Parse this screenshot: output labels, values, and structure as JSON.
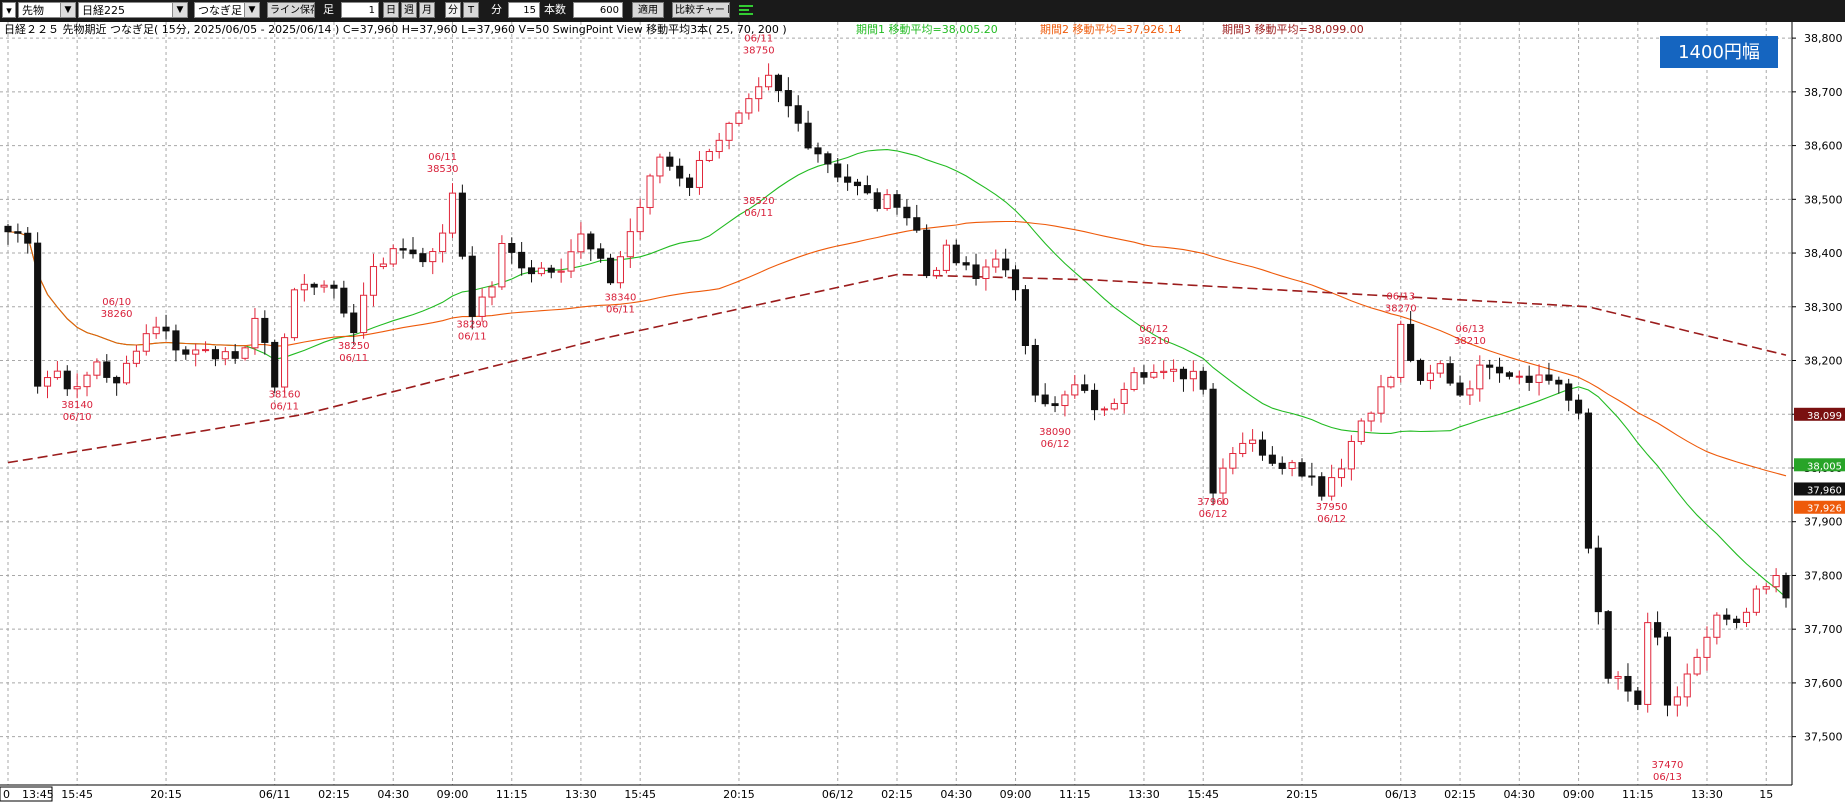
{
  "toolbar": {
    "market": "先物",
    "instrument": "日経225",
    "series_type": "つなぎ足",
    "save_line": "ライン保存",
    "ashi": "足",
    "ashi_num": "1",
    "day": "日",
    "week": "週",
    "month": "月",
    "minute": "分",
    "tick": "T",
    "interval": "15",
    "minute_lbl": "分",
    "bars_lbl": "本数",
    "bars": "600",
    "apply": "適用",
    "compare": "比較チャート"
  },
  "chart_data": {
    "type": "candlestick",
    "header_text": "日経２２５ 先物期近 つなぎ足( 15分, 2025/06/05 - 2025/06/14 )  C=37,960 H=37,960 L=37,960 V=50   SwingPoint View   移動平均3本( 25, 70, 200 )",
    "ma_legend": [
      {
        "text": "期間1 移動平均=38,005.20",
        "color": "#22bb22"
      },
      {
        "text": "期間2 移動平均=37,926.14",
        "color": "#ee5a0a"
      },
      {
        "text": "期間3 移動平均=38,099.00",
        "color": "#9b1c1c"
      }
    ],
    "badge": "1400円幅",
    "ylim": [
      37410,
      38830
    ],
    "y_ticks": [
      37500,
      37600,
      37700,
      37800,
      37900,
      38000,
      38100,
      38200,
      38300,
      38400,
      38500,
      38600,
      38700,
      38800
    ],
    "y_tick_labels": [
      "37,500",
      "37,600",
      "37,700",
      "37,800",
      "37,900",
      "38,000",
      "38,100",
      "38,200",
      "38,300",
      "38,400",
      "38,500",
      "38,600",
      "38,700",
      "38,800"
    ],
    "bar_count": 181,
    "x_labels": [
      {
        "i": 0,
        "t": "13:45"
      },
      {
        "i": 7,
        "t": "15:45"
      },
      {
        "i": 16,
        "t": "20:15"
      },
      {
        "i": 27,
        "t": "06/11"
      },
      {
        "i": 33,
        "t": "02:15"
      },
      {
        "i": 39,
        "t": "04:30"
      },
      {
        "i": 45,
        "t": "09:00"
      },
      {
        "i": 51,
        "t": "11:15"
      },
      {
        "i": 58,
        "t": "13:30"
      },
      {
        "i": 64,
        "t": "15:45"
      },
      {
        "i": 74,
        "t": "20:15"
      },
      {
        "i": 84,
        "t": "06/12"
      },
      {
        "i": 90,
        "t": "02:15"
      },
      {
        "i": 96,
        "t": "04:30"
      },
      {
        "i": 102,
        "t": "09:00"
      },
      {
        "i": 108,
        "t": "11:15"
      },
      {
        "i": 115,
        "t": "13:30"
      },
      {
        "i": 121,
        "t": "15:45"
      },
      {
        "i": 131,
        "t": "20:15"
      },
      {
        "i": 141,
        "t": "06/13"
      },
      {
        "i": 147,
        "t": "02:15"
      },
      {
        "i": 153,
        "t": "04:30"
      },
      {
        "i": 159,
        "t": "09:00"
      },
      {
        "i": 165,
        "t": "11:15"
      },
      {
        "i": 172,
        "t": "13:30"
      },
      {
        "i": 178,
        "t": "15"
      }
    ],
    "x_start_prefix": "0",
    "path": [
      [
        0,
        38440
      ],
      [
        2,
        38430
      ],
      [
        3,
        38160
      ],
      [
        5,
        38180
      ],
      [
        7,
        38140
      ],
      [
        9,
        38200
      ],
      [
        11,
        38150
      ],
      [
        13,
        38230
      ],
      [
        15,
        38270
      ],
      [
        18,
        38210
      ],
      [
        20,
        38230
      ],
      [
        23,
        38190
      ],
      [
        25,
        38280
      ],
      [
        27,
        38160
      ],
      [
        29,
        38330
      ],
      [
        32,
        38350
      ],
      [
        35,
        38260
      ],
      [
        37,
        38380
      ],
      [
        40,
        38410
      ],
      [
        43,
        38390
      ],
      [
        45,
        38500
      ],
      [
        47,
        38290
      ],
      [
        49,
        38340
      ],
      [
        50,
        38410
      ],
      [
        53,
        38370
      ],
      [
        56,
        38380
      ],
      [
        58,
        38430
      ],
      [
        61,
        38350
      ],
      [
        63,
        38440
      ],
      [
        66,
        38580
      ],
      [
        69,
        38530
      ],
      [
        71,
        38600
      ],
      [
        74,
        38650
      ],
      [
        77,
        38720
      ],
      [
        79,
        38670
      ],
      [
        81,
        38610
      ],
      [
        84,
        38550
      ],
      [
        86,
        38520
      ],
      [
        88,
        38490
      ],
      [
        90,
        38500
      ],
      [
        92,
        38440
      ],
      [
        93,
        38360
      ],
      [
        95,
        38400
      ],
      [
        98,
        38350
      ],
      [
        100,
        38400
      ],
      [
        102,
        38320
      ],
      [
        104,
        38150
      ],
      [
        106,
        38110
      ],
      [
        108,
        38150
      ],
      [
        111,
        38100
      ],
      [
        114,
        38190
      ],
      [
        117,
        38170
      ],
      [
        120,
        38180
      ],
      [
        121,
        38160
      ],
      [
        122,
        37960
      ],
      [
        124,
        38040
      ],
      [
        126,
        38060
      ],
      [
        128,
        38000
      ],
      [
        130,
        38020
      ],
      [
        133,
        37960
      ],
      [
        135,
        38010
      ],
      [
        137,
        38090
      ],
      [
        140,
        38170
      ],
      [
        141,
        38260
      ],
      [
        143,
        38150
      ],
      [
        145,
        38190
      ],
      [
        147,
        38140
      ],
      [
        150,
        38200
      ],
      [
        152,
        38180
      ],
      [
        155,
        38170
      ],
      [
        157,
        38160
      ],
      [
        159,
        38090
      ],
      [
        160,
        37850
      ],
      [
        162,
        37620
      ],
      [
        165,
        37560
      ],
      [
        166,
        37700
      ],
      [
        167,
        37680
      ],
      [
        168,
        37560
      ],
      [
        169,
        37560
      ],
      [
        171,
        37650
      ],
      [
        173,
        37720
      ],
      [
        175,
        37700
      ],
      [
        177,
        37760
      ],
      [
        179,
        37790
      ],
      [
        180,
        37760
      ]
    ],
    "noise_amp": 30,
    "ma_periods": [
      25,
      70,
      200
    ],
    "ma_dash": [
      false,
      false,
      true
    ],
    "ma_colors": [
      "#22bb22",
      "#ee5a0a",
      "#9b1c1c"
    ],
    "ma3_points": [
      [
        0,
        38010
      ],
      [
        30,
        38100
      ],
      [
        60,
        38240
      ],
      [
        90,
        38360
      ],
      [
        110,
        38350
      ],
      [
        140,
        38320
      ],
      [
        160,
        38300
      ],
      [
        180,
        38210
      ]
    ],
    "right_value_boxes": [
      {
        "v": 38099,
        "t": "38,099",
        "bg": "#7a1010"
      },
      {
        "v": 38005,
        "t": "38,005",
        "bg": "#28a428"
      },
      {
        "v": 37960,
        "t": "37,960",
        "bg": "#111111"
      },
      {
        "v": 37926,
        "t": "37,926",
        "bg": "#ee5a0a"
      }
    ],
    "swing_points": [
      {
        "i": 44,
        "v": 38540,
        "above": true,
        "a": "06/11",
        "b": "38530"
      },
      {
        "i": 76,
        "v": 38760,
        "above": true,
        "a": "06/11",
        "b": "38750"
      },
      {
        "i": 11,
        "v": 38270,
        "above": true,
        "a": "06/10",
        "b": "38260"
      },
      {
        "i": 116,
        "v": 38220,
        "above": true,
        "a": "06/12",
        "b": "38210"
      },
      {
        "i": 141,
        "v": 38280,
        "above": true,
        "a": "06/13",
        "b": "38270"
      },
      {
        "i": 148,
        "v": 38220,
        "above": true,
        "a": "06/13",
        "b": "38210"
      },
      {
        "i": 7,
        "v": 38130,
        "above": false,
        "a": "38140",
        "b": "06/10"
      },
      {
        "i": 28,
        "v": 38150,
        "above": false,
        "a": "38160",
        "b": "06/11"
      },
      {
        "i": 35,
        "v": 38240,
        "above": false,
        "a": "38250",
        "b": "06/11"
      },
      {
        "i": 47,
        "v": 38280,
        "above": false,
        "a": "38290",
        "b": "06/11"
      },
      {
        "i": 62,
        "v": 38330,
        "above": false,
        "a": "38340",
        "b": "06/11"
      },
      {
        "i": 76,
        "v": 38510,
        "above": false,
        "a": "38520",
        "b": "06/11"
      },
      {
        "i": 106,
        "v": 38080,
        "above": false,
        "a": "38090",
        "b": "06/12"
      },
      {
        "i": 122,
        "v": 37950,
        "above": false,
        "a": "37960",
        "b": "06/12"
      },
      {
        "i": 134,
        "v": 37940,
        "above": false,
        "a": "37950",
        "b": "06/12"
      },
      {
        "i": 168,
        "v": 37460,
        "above": false,
        "a": "37470",
        "b": "06/13"
      }
    ]
  }
}
